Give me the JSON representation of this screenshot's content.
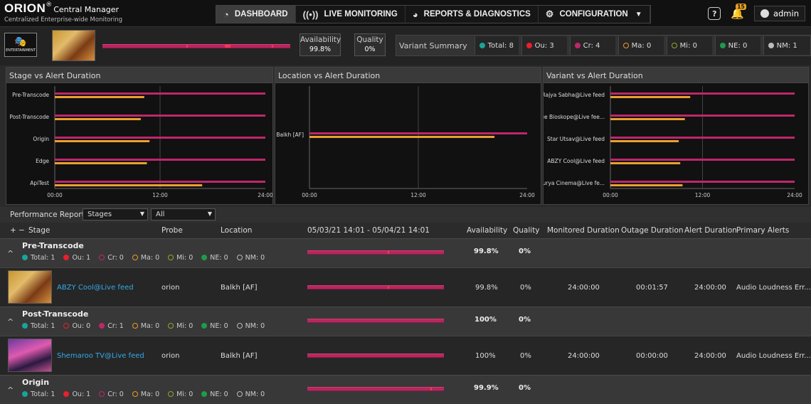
{
  "brand": {
    "name": "ORION",
    "reg": "®",
    "product": "Central Manager",
    "tagline": "Centralized Enterprise-wide Monitoring"
  },
  "nav": [
    {
      "label": "DASHBOARD",
      "icon": "dashboard-gauge-icon",
      "active": true
    },
    {
      "label": "LIVE MONITORING",
      "icon": "broadcast-icon"
    },
    {
      "label": "REPORTS & DIAGNOSTICS",
      "icon": "reports-icon"
    },
    {
      "label": "CONFIGURATION",
      "icon": "gear-icon"
    }
  ],
  "header": {
    "notifications": "15",
    "user": "admin",
    "help_glyph": "?"
  },
  "channel": {
    "logo_text": "ENTERTAINMENT"
  },
  "kpis": {
    "availability_label": "Availability",
    "availability_value": "99.8%",
    "quality_label": "Quality",
    "quality_value": "0%"
  },
  "variant_summary": {
    "title": "Variant Summary",
    "items": [
      {
        "label": "Total: 8",
        "color": "#1aa39a",
        "style": "dot"
      },
      {
        "label": "Ou: 3",
        "color": "#e8202a",
        "style": "dot"
      },
      {
        "label": "Cr: 4",
        "color": "#c0266b",
        "style": "dot"
      },
      {
        "label": "Ma: 0",
        "color": "#e89a2a",
        "style": "ring"
      },
      {
        "label": "Mi: 0",
        "color": "#9aa22a",
        "style": "ring"
      },
      {
        "label": "NE: 0",
        "color": "#1f9a4a",
        "style": "dot"
      },
      {
        "label": "NM: 1",
        "color": "#bbbbbb",
        "style": "dot"
      }
    ]
  },
  "charts": {
    "titles": [
      "Stage vs Alert Duration",
      "Location vs Alert Duration",
      "Variant vs Alert Duration"
    ]
  },
  "chart_data": [
    {
      "type": "bar",
      "title": "Stage vs Alert Duration",
      "orientation": "horizontal",
      "categories": [
        "Pre-Transcode",
        "Post-Transcode",
        "Origin",
        "Edge",
        "ApiTest"
      ],
      "series": [
        {
          "values": [
            24,
            24,
            24,
            24,
            24
          ],
          "color": "#c0266b"
        },
        {
          "values": [
            10.2,
            9.8,
            10.8,
            10.5,
            16.8
          ],
          "color": "#e8a030"
        }
      ],
      "xticks": [
        "00:00",
        "12:00",
        "24:00"
      ],
      "xlim": [
        0,
        24
      ]
    },
    {
      "type": "bar",
      "title": "Location vs Alert Duration",
      "orientation": "horizontal",
      "categories": [
        "Balkh [AF]"
      ],
      "series": [
        {
          "values": [
            24
          ],
          "color": "#c0266b"
        },
        {
          "values": [
            20.4
          ],
          "color": "#e8a030"
        }
      ],
      "xticks": [
        "00:00",
        "12:00",
        "24:00"
      ],
      "xlim": [
        0,
        24
      ]
    },
    {
      "type": "bar",
      "title": "Variant vs Alert Duration",
      "orientation": "horizontal",
      "categories": [
        "Rajya Sabha@Live feed",
        "Zee Bioskope@Live fee...",
        "Star Utsav@Live feed",
        "ABZY Cool@Live feed",
        "Surya Cinema@Live fe..."
      ],
      "series": [
        {
          "values": [
            24,
            24,
            24,
            24,
            24
          ],
          "color": "#c0266b"
        },
        {
          "values": [
            10.4,
            9.7,
            8.9,
            9.1,
            9.4
          ],
          "color": "#e8a030"
        }
      ],
      "xticks": [
        "00:00",
        "12:00",
        "24:00"
      ],
      "xlim": [
        0,
        24
      ]
    }
  ],
  "report": {
    "label": "Performance Report:",
    "select1": "Stages",
    "select2": "All"
  },
  "table": {
    "headers": {
      "expand": "+ −",
      "stage": "Stage",
      "probe": "Probe",
      "location": "Location",
      "range": "05/03/21 14:01 - 05/04/21 14:01",
      "availability": "Availability",
      "quality": "Quality",
      "monitored": "Monitored Duration",
      "outage": "Outage Duration",
      "alert": "Alert Duration",
      "primary": "Primary Alerts"
    },
    "groups": [
      {
        "name": "Pre-Transcode",
        "stats": [
          "Total: 1",
          "Ou: 1",
          "Cr: 0",
          "Ma: 0",
          "Mi: 0",
          "NE: 0",
          "NM: 0"
        ],
        "availability": "99.8%",
        "quality": "0%",
        "row": {
          "variant": "ABZY Cool@Live feed",
          "probe": "orion",
          "location": "Balkh [AF]",
          "availability": "99.8%",
          "quality": "0%",
          "monitored": "24:00:00",
          "outage": "00:01:57",
          "alert": "24:00:00",
          "primary": "Audio Loudness Err..."
        }
      },
      {
        "name": "Post-Transcode",
        "stats": [
          "Total: 1",
          "Ou: 0",
          "Cr: 1",
          "Ma: 0",
          "Mi: 0",
          "NE: 0",
          "NM: 0"
        ],
        "availability": "100%",
        "quality": "0%",
        "row": {
          "variant": "Shemaroo TV@Live feed",
          "probe": "orion",
          "location": "Balkh [AF]",
          "availability": "100%",
          "quality": "0%",
          "monitored": "24:00:00",
          "outage": "00:00:00",
          "alert": "24:00:00",
          "primary": "Audio Loudness Err..."
        }
      },
      {
        "name": "Origin",
        "stats": [
          "Total: 1",
          "Ou: 1",
          "Cr: 0",
          "Ma: 0",
          "Mi: 0",
          "NE: 0",
          "NM: 0"
        ],
        "availability": "99.9%",
        "quality": "0%"
      }
    ]
  }
}
